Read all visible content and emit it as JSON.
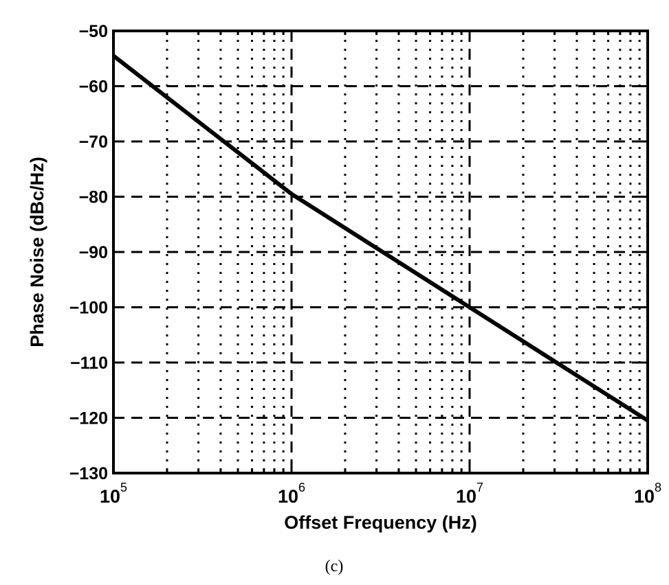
{
  "chart_data": {
    "type": "line",
    "xscale": "log",
    "xlim": [
      100000,
      100000000
    ],
    "ylim": [
      -130,
      -50
    ],
    "xlabel": "Offset Frequency (Hz)",
    "ylabel": "Phase Noise (dBc/Hz)",
    "caption": "(c)",
    "grid": true,
    "x_ticks": [
      {
        "base": "10",
        "exp": "5",
        "value": 100000
      },
      {
        "base": "10",
        "exp": "6",
        "value": 1000000
      },
      {
        "base": "10",
        "exp": "7",
        "value": 10000000
      },
      {
        "base": "10",
        "exp": "8",
        "value": 100000000
      }
    ],
    "y_ticks": [
      "−130",
      "−120",
      "−110",
      "−100",
      "−90",
      "−80",
      "−70",
      "−60",
      "−50"
    ],
    "y_tick_values": [
      -130,
      -120,
      -110,
      -100,
      -90,
      -80,
      -70,
      -60,
      -50
    ],
    "series": [
      {
        "x": [
          100000,
          1000000,
          10000000,
          100000000
        ],
        "y": [
          -54.5,
          -79.5,
          -100,
          -120.5
        ]
      }
    ],
    "colors": {
      "line": "#000000",
      "grid": "#000000",
      "background": "#ffffff"
    }
  }
}
